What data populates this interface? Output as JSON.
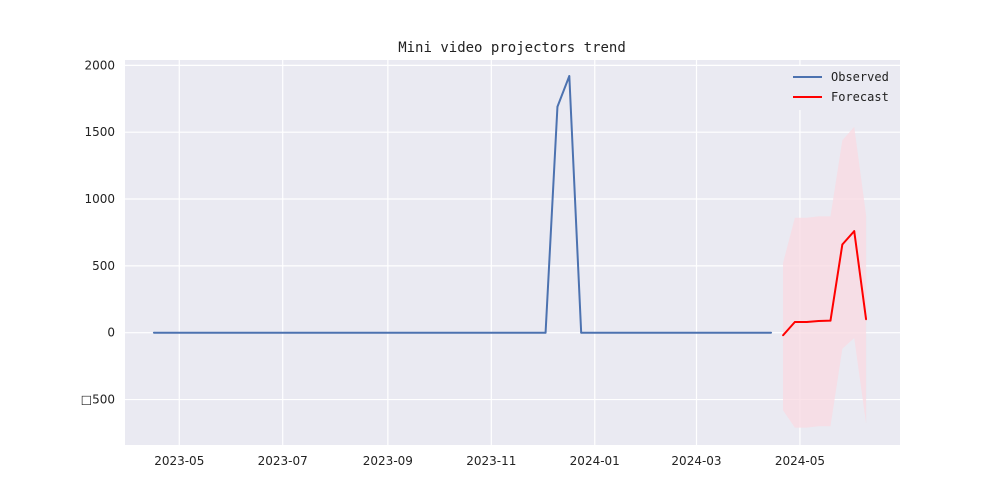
{
  "chart_data": {
    "type": "line",
    "title": "Mini video projectors trend",
    "xlabel": "",
    "ylabel": "",
    "ylim": [
      -840,
      2040
    ],
    "y_ticks": [
      -500,
      0,
      500,
      1000,
      1500,
      2000
    ],
    "y_tick_labels": [
      "□500",
      "0",
      "500",
      "1000",
      "1500",
      "2000"
    ],
    "x_ticks": [
      "2023-05",
      "2023-07",
      "2023-09",
      "2023-11",
      "2024-01",
      "2024-03",
      "2024-05"
    ],
    "grid": true,
    "legend": {
      "position": "top-right"
    },
    "series": [
      {
        "name": "Observed",
        "color": "#4c72b0",
        "points": [
          {
            "x": "2023-04-16",
            "y": 0
          },
          {
            "x": "2023-12-03",
            "y": 0
          },
          {
            "x": "2023-12-10",
            "y": 1690
          },
          {
            "x": "2023-12-17",
            "y": 1920
          },
          {
            "x": "2023-12-24",
            "y": 0
          },
          {
            "x": "2024-04-14",
            "y": 0
          }
        ]
      },
      {
        "name": "Forecast",
        "color": "#ff0000",
        "points": [
          {
            "x": "2024-04-21",
            "y": -20
          },
          {
            "x": "2024-04-28",
            "y": 80
          },
          {
            "x": "2024-05-05",
            "y": 80
          },
          {
            "x": "2024-05-12",
            "y": 88
          },
          {
            "x": "2024-05-19",
            "y": 90
          },
          {
            "x": "2024-05-26",
            "y": 660
          },
          {
            "x": "2024-06-02",
            "y": 760
          },
          {
            "x": "2024-06-09",
            "y": 100
          }
        ]
      }
    ],
    "confidence_band": {
      "color": "#f9d9e2",
      "points": [
        {
          "x": "2024-04-21",
          "lower": -580,
          "upper": 520
        },
        {
          "x": "2024-04-28",
          "lower": -710,
          "upper": 860
        },
        {
          "x": "2024-05-05",
          "lower": -710,
          "upper": 860
        },
        {
          "x": "2024-05-12",
          "lower": -700,
          "upper": 870
        },
        {
          "x": "2024-05-19",
          "lower": -700,
          "upper": 870
        },
        {
          "x": "2024-05-26",
          "lower": -120,
          "upper": 1440
        },
        {
          "x": "2024-06-02",
          "lower": -40,
          "upper": 1540
        },
        {
          "x": "2024-06-09",
          "lower": -680,
          "upper": 880
        }
      ]
    },
    "x_range": [
      "2023-03-30",
      "2024-06-29"
    ]
  }
}
